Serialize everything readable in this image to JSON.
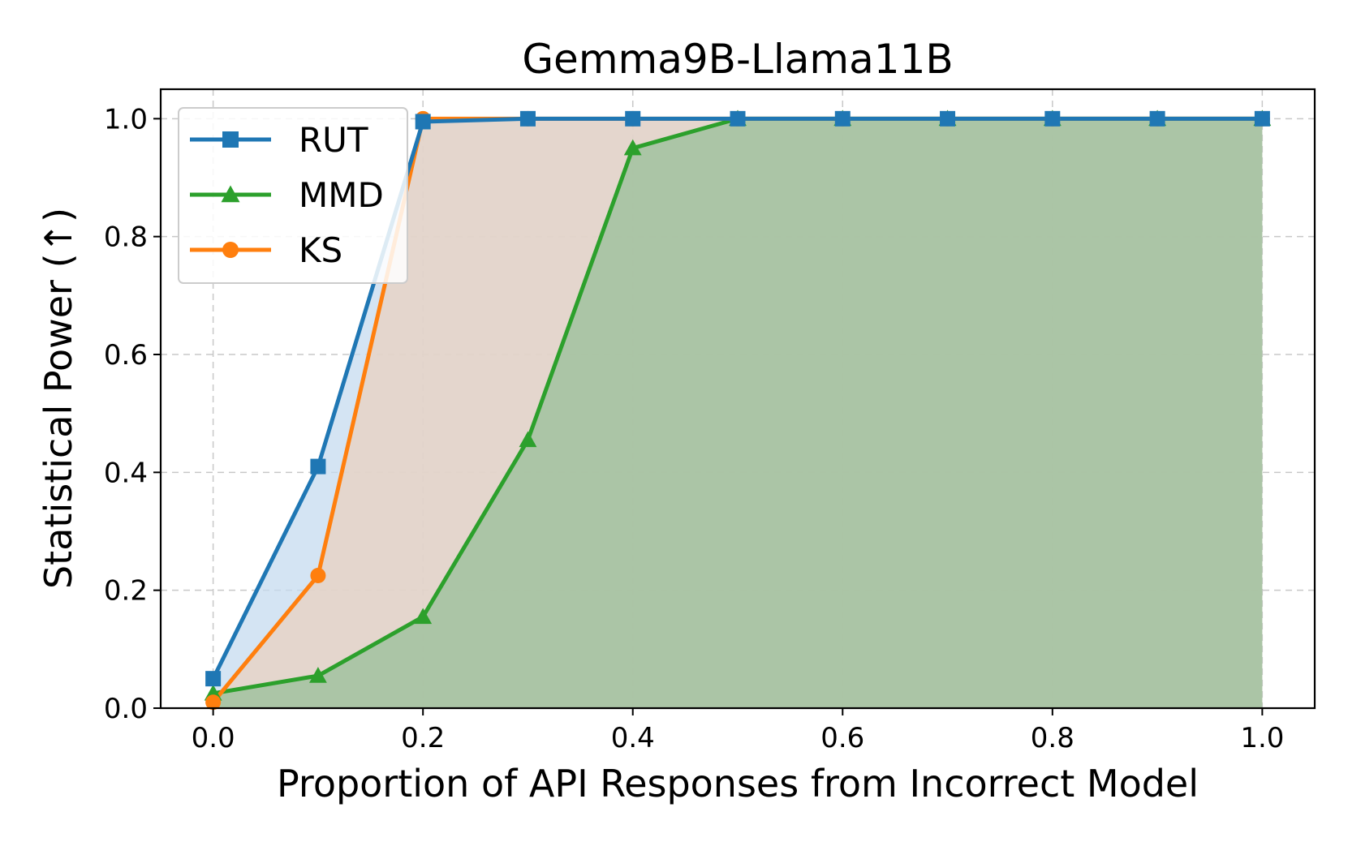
{
  "chart_data": {
    "type": "line",
    "title": "Gemma9B-Llama11B",
    "xlabel": "Proportion of API Responses from Incorrect Model",
    "ylabel": "Statistical Power (↑)",
    "xlim": [
      -0.05,
      1.05
    ],
    "ylim": [
      0.0,
      1.05
    ],
    "xticks": [
      0.0,
      0.2,
      0.4,
      0.6,
      0.8,
      1.0
    ],
    "yticks": [
      0.0,
      0.2,
      0.4,
      0.6,
      0.8,
      1.0
    ],
    "xtick_labels": [
      "0.0",
      "0.2",
      "0.4",
      "0.6",
      "0.8",
      "1.0"
    ],
    "ytick_labels": [
      "0.0",
      "0.2",
      "0.4",
      "0.6",
      "0.8",
      "1.0"
    ],
    "grid": true,
    "legend_position": "top-left",
    "series": [
      {
        "name": "RUT",
        "color": "#1f77b4",
        "marker": "square",
        "fill": "#c6dbef",
        "x": [
          0.0,
          0.1,
          0.2,
          0.3,
          0.4,
          0.5,
          0.6,
          0.7,
          0.8,
          0.9,
          1.0
        ],
        "y": [
          0.05,
          0.41,
          0.995,
          1.0,
          1.0,
          1.0,
          1.0,
          1.0,
          1.0,
          1.0,
          1.0
        ]
      },
      {
        "name": "MMD",
        "color": "#2ca02c",
        "marker": "triangle",
        "fill": "#98bf98",
        "x": [
          0.0,
          0.1,
          0.2,
          0.3,
          0.4,
          0.5,
          0.6,
          0.7,
          0.8,
          0.9,
          1.0
        ],
        "y": [
          0.025,
          0.055,
          0.155,
          0.455,
          0.95,
          1.0,
          1.0,
          1.0,
          1.0,
          1.0,
          1.0
        ]
      },
      {
        "name": "KS",
        "color": "#ff7f0e",
        "marker": "circle",
        "fill": "#e9d2c0",
        "x": [
          0.0,
          0.1,
          0.2,
          0.3,
          0.4,
          0.5,
          0.6,
          0.7,
          0.8,
          0.9,
          1.0
        ],
        "y": [
          0.01,
          0.225,
          1.0,
          1.0,
          1.0,
          1.0,
          1.0,
          1.0,
          1.0,
          1.0,
          1.0
        ]
      }
    ]
  }
}
